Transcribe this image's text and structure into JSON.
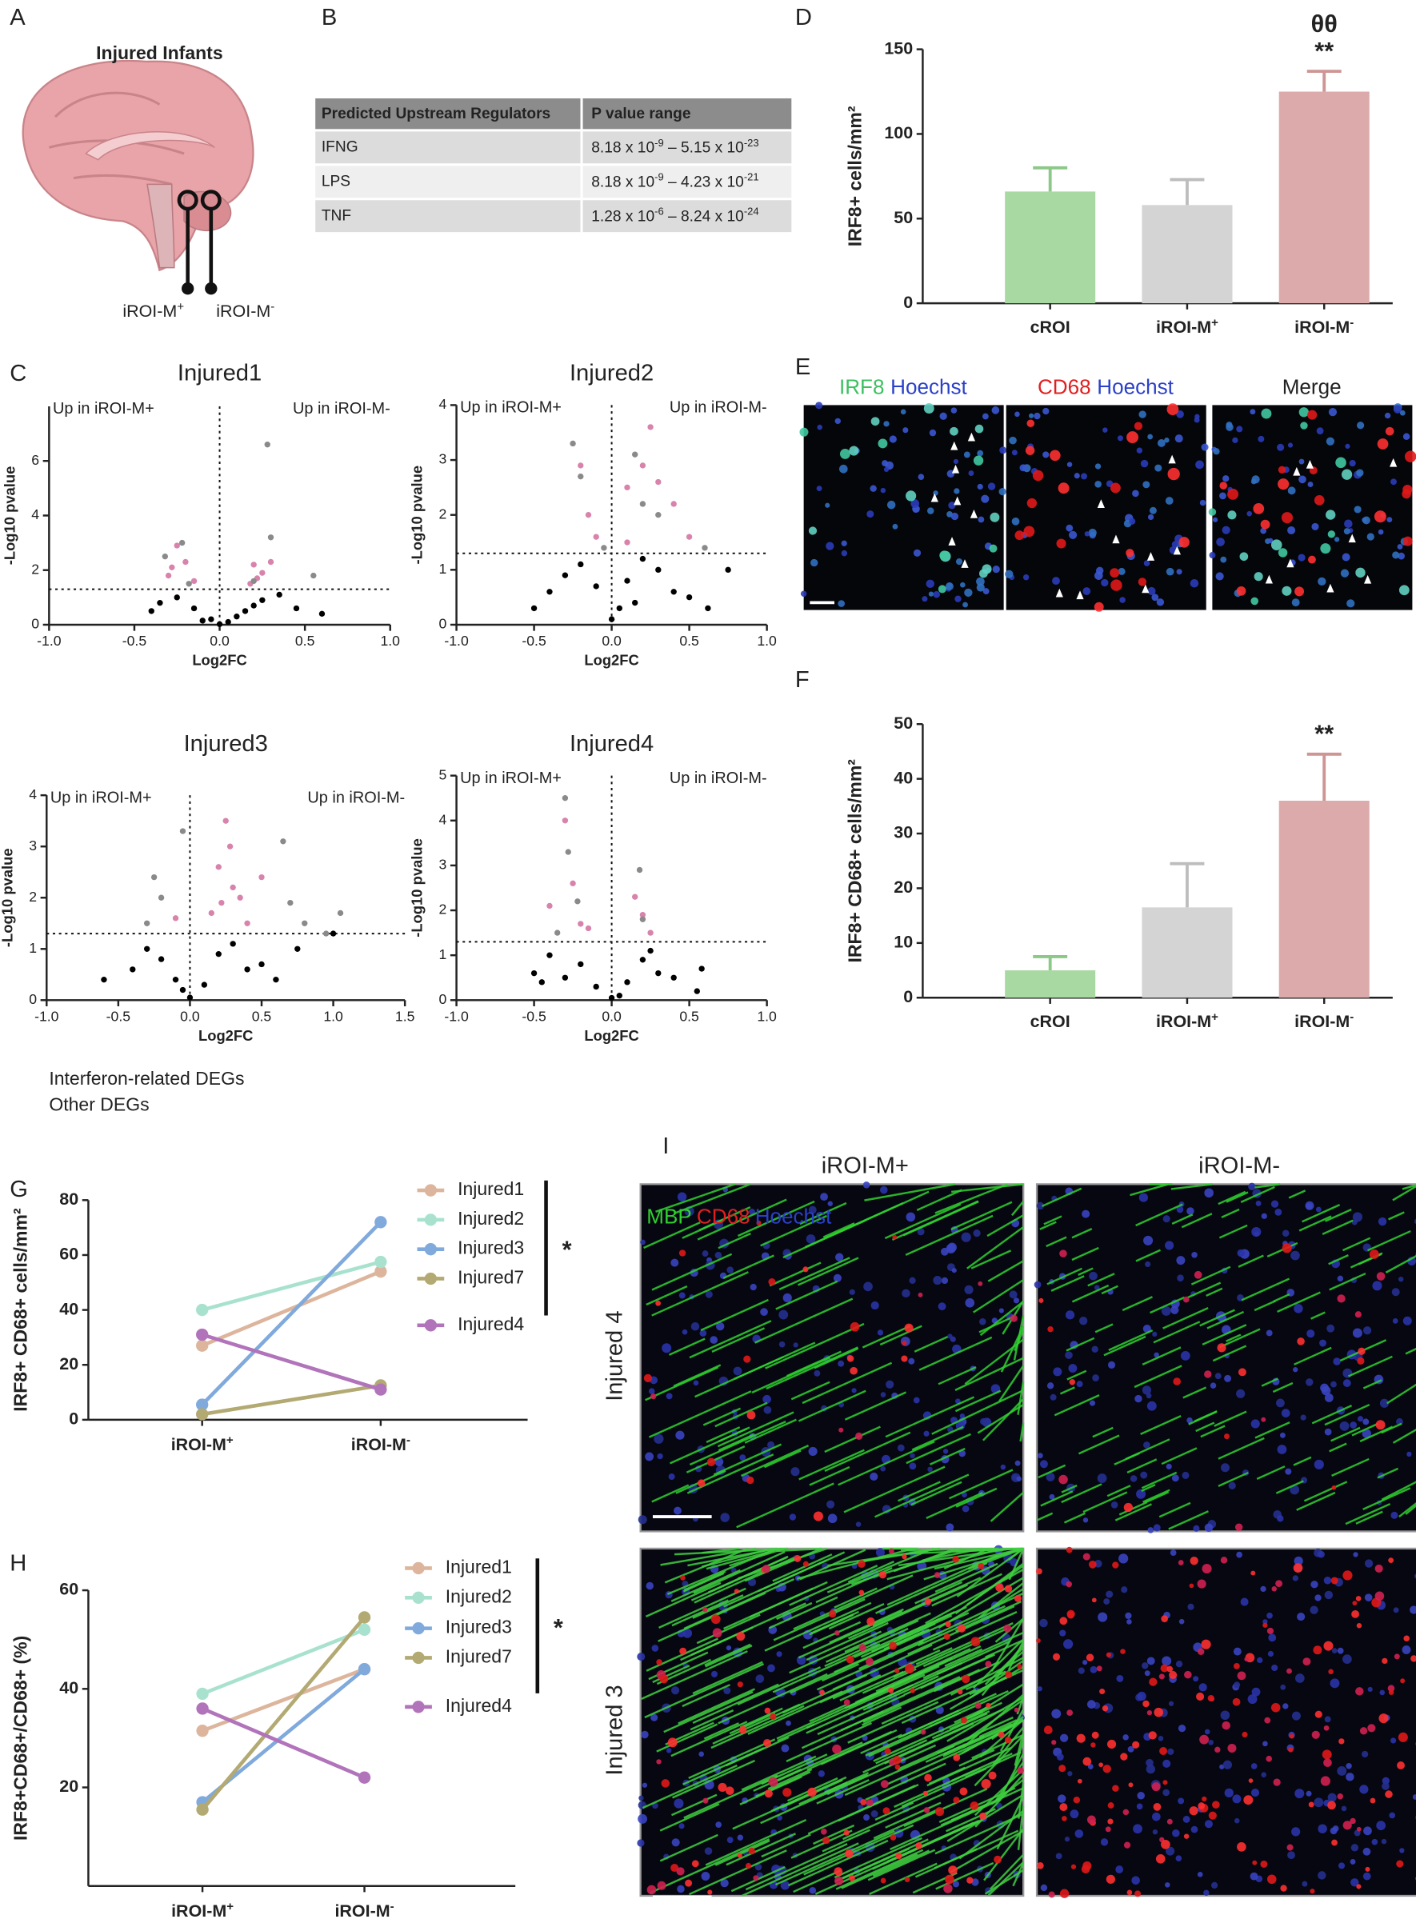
{
  "panel_labels": [
    "A",
    "B",
    "C",
    "D",
    "E",
    "F",
    "G",
    "H",
    "I"
  ],
  "panel_a": {
    "title": "Injured Infants",
    "labels": [
      "iROI-M+",
      "iROI-M-"
    ]
  },
  "table_b": {
    "header": [
      "Predicted Upstream Regulators",
      "P value range"
    ],
    "rows": [
      [
        "IFNG",
        [
          "8.18 x 10",
          "-9",
          " – 5.15 x 10",
          "-23"
        ]
      ],
      [
        "LPS",
        [
          "8.18 x 10",
          "-9",
          " – 4.23 x 10",
          "-21"
        ]
      ],
      [
        "TNF",
        [
          "1.28 x 10",
          "-6",
          " – 8.24 x 10",
          "-24"
        ]
      ]
    ]
  },
  "panel_e": {
    "headers": [
      [
        "IRF8",
        "Hoechst"
      ],
      [
        "CD68",
        "Hoechst"
      ],
      [
        "Merge"
      ]
    ]
  },
  "panel_i": {
    "column_titles": [
      "iROI-M+",
      "iROI-M-"
    ],
    "row_titles": [
      "Injured 4",
      "Injured 3"
    ],
    "stain_labels": [
      "MBP",
      "CD68",
      "Hoechst"
    ]
  },
  "chart_data": [
    {
      "type": "bar",
      "ylabel": "IRF8+ cells/mm²",
      "categories": [
        "cROI",
        "iROI-M+",
        "iROI-M-"
      ],
      "values": [
        66,
        58,
        125
      ],
      "errors": [
        14,
        15,
        12
      ],
      "colors": [
        "#a9d9a2",
        "#d4d4d4",
        "#dcaaaa"
      ],
      "error_colors": [
        "#8cc887",
        "#bdbdbd",
        "#cf9494"
      ],
      "ylim": [
        0,
        150
      ],
      "yticks": [
        0,
        50,
        100,
        150
      ],
      "annotations": [
        "θθ",
        "**"
      ]
    },
    {
      "type": "bar",
      "ylabel": "IRF8+ CD68+ cells/mm²",
      "categories": [
        "cROI",
        "iROI-M+",
        "iROI-M-"
      ],
      "values": [
        5,
        16.5,
        36
      ],
      "errors": [
        2.5,
        8,
        8.5
      ],
      "colors": [
        "#a9d9a2",
        "#d4d4d4",
        "#dcaaaa"
      ],
      "error_colors": [
        "#8cc887",
        "#bdbdbd",
        "#cf9494"
      ],
      "ylim": [
        0,
        50
      ],
      "yticks": [
        0,
        10,
        20,
        30,
        40,
        50
      ],
      "annotations": [
        "**"
      ]
    },
    {
      "type": "line",
      "ylabel": "IRF8+ CD68+ cells/mm²",
      "categories": [
        "iROI-M+",
        "iROI-M-"
      ],
      "ylim": [
        0,
        80
      ],
      "yticks": [
        0,
        20,
        40,
        60,
        80
      ],
      "annotations": [
        "*"
      ],
      "series": [
        {
          "name": "Injured1",
          "color": "#dcb59c",
          "values": [
            27,
            54
          ]
        },
        {
          "name": "Injured2",
          "color": "#a8e2cf",
          "values": [
            40,
            57.5
          ]
        },
        {
          "name": "Injured3",
          "color": "#80a9dc",
          "values": [
            5.5,
            72
          ]
        },
        {
          "name": "Injured7",
          "color": "#b3a972",
          "values": [
            2,
            12.5
          ]
        },
        {
          "name": "Injured4",
          "color": "#b173ba",
          "values": [
            31,
            11
          ]
        }
      ]
    },
    {
      "type": "line",
      "ylabel": "IRF8+CD68+/CD68+ (%)",
      "categories": [
        "iROI-M+",
        "iROI-M-"
      ],
      "ylim": [
        0,
        60
      ],
      "yticks": [
        20,
        40,
        60
      ],
      "annotations": [
        "*"
      ],
      "series": [
        {
          "name": "Injured1",
          "color": "#dcb59c",
          "values": [
            31.5,
            44
          ]
        },
        {
          "name": "Injured2",
          "color": "#a8e2cf",
          "values": [
            39,
            52
          ]
        },
        {
          "name": "Injured3",
          "color": "#80a9dc",
          "values": [
            17,
            44
          ]
        },
        {
          "name": "Injured7",
          "color": "#b3a972",
          "values": [
            15.5,
            54.5
          ]
        },
        {
          "name": "Injured4",
          "color": "#b173ba",
          "values": [
            36,
            22
          ]
        }
      ]
    },
    {
      "type": "scatter",
      "title": "Injured1",
      "xlabel": "Log2FC",
      "ylabel": "-Log10 pvalue",
      "annotations": [
        "Up in iROI-M+",
        "Up in iROI-M-"
      ],
      "xlim": [
        -1,
        1
      ],
      "xticks": [
        {
          "value": -1,
          "label": "-1.0"
        },
        -0.5,
        {
          "value": 0,
          "label": "0.0"
        },
        0.5,
        {
          "value": 1,
          "label": "1.0"
        }
      ],
      "ylim": [
        0,
        8
      ],
      "yticks": [
        0,
        2,
        4,
        6
      ],
      "threshold": 1.3,
      "series": [
        {
          "name": "Interferon-related DEGs",
          "color": "#d883ac",
          "x": [
            -0.25,
            -0.2,
            -0.3,
            -0.15,
            0.2,
            0.25,
            0.3,
            0.22,
            -0.28,
            0.18
          ],
          "values": [
            2.9,
            2.3,
            1.8,
            1.6,
            2.2,
            1.9,
            2.3,
            1.7,
            2.1,
            1.5
          ]
        },
        {
          "name": "Other DEGs",
          "color": "#8a8a8a",
          "x": [
            -0.32,
            -0.22,
            0.28,
            0.3,
            -0.18,
            0.2,
            0.55
          ],
          "values": [
            2.5,
            3.0,
            6.6,
            3.2,
            1.5,
            1.6,
            1.8
          ]
        }
      ],
      "background": {
        "color": "#000000",
        "x": [
          -0.35,
          -0.25,
          -0.15,
          -0.05,
          0.05,
          0.1,
          0.15,
          0.25,
          0.35,
          0.45,
          0.6,
          -0.4,
          -0.1,
          0.2,
          0.0
        ],
        "values": [
          0.8,
          1.0,
          0.6,
          0.2,
          0.1,
          0.3,
          0.5,
          0.9,
          1.1,
          0.6,
          0.4,
          0.5,
          0.15,
          0.7,
          0.02
        ]
      }
    },
    {
      "type": "scatter",
      "title": "Injured2",
      "xlabel": "Log2FC",
      "ylabel": "-Log10 pvalue",
      "annotations": [
        "Up in iROI-M+",
        "Up in iROI-M-"
      ],
      "xlim": [
        -1,
        1
      ],
      "xticks": [
        {
          "value": -1,
          "label": "-1.0"
        },
        -0.5,
        {
          "value": 0,
          "label": "0.0"
        },
        0.5,
        {
          "value": 1,
          "label": "1.0"
        }
      ],
      "ylim": [
        0,
        4
      ],
      "yticks": [
        0,
        1,
        2,
        3,
        4
      ],
      "threshold": 1.3,
      "series": [
        {
          "name": "Interferon-related DEGs",
          "color": "#d883ac",
          "x": [
            -0.2,
            -0.15,
            0.1,
            0.2,
            0.3,
            0.5,
            0.1,
            0.4,
            -0.1,
            0.25
          ],
          "values": [
            2.9,
            2.0,
            2.5,
            2.9,
            2.6,
            1.6,
            1.5,
            2.2,
            1.6,
            3.6
          ]
        },
        {
          "name": "Other DEGs",
          "color": "#8a8a8a",
          "x": [
            -0.25,
            -0.2,
            0.15,
            0.2,
            -0.05,
            0.3,
            0.6
          ],
          "values": [
            3.3,
            2.7,
            3.1,
            2.2,
            1.4,
            2.0,
            1.4
          ]
        }
      ],
      "background": {
        "color": "#000000",
        "x": [
          -0.4,
          -0.3,
          -0.2,
          -0.1,
          0.0,
          0.05,
          0.1,
          0.2,
          0.3,
          0.4,
          0.5,
          0.62,
          0.75,
          -0.5,
          0.15
        ],
        "values": [
          0.6,
          0.9,
          1.1,
          0.7,
          0.1,
          0.3,
          0.8,
          1.2,
          1.0,
          0.6,
          0.5,
          0.3,
          1.0,
          0.3,
          0.4
        ]
      }
    },
    {
      "type": "scatter",
      "title": "Injured3",
      "xlabel": "Log2FC",
      "ylabel": "-Log10 pvalue",
      "annotations": [
        "Up in iROI-M+",
        "Up in iROI-M-"
      ],
      "xlim": [
        -1,
        1.5
      ],
      "xticks": [
        {
          "value": -1,
          "label": "-1.0"
        },
        -0.5,
        {
          "value": 0,
          "label": "0.0"
        },
        0.5,
        {
          "value": 1,
          "label": "1.0"
        },
        1.5
      ],
      "ylim": [
        0,
        4
      ],
      "yticks": [
        0,
        1,
        2,
        3,
        4
      ],
      "threshold": 1.3,
      "series": [
        {
          "name": "Interferon-related DEGs",
          "color": "#d883ac",
          "x": [
            0.2,
            0.25,
            0.3,
            0.35,
            0.15,
            0.4,
            0.22,
            0.5,
            0.28,
            -0.1
          ],
          "values": [
            2.6,
            3.5,
            2.2,
            2.0,
            1.7,
            1.5,
            1.9,
            2.4,
            3.0,
            1.6
          ]
        },
        {
          "name": "Other DEGs",
          "color": "#8a8a8a",
          "x": [
            -0.05,
            -0.2,
            -0.3,
            0.7,
            0.65,
            1.05,
            0.95,
            0.8,
            -0.25
          ],
          "values": [
            3.3,
            2.0,
            1.5,
            1.9,
            3.1,
            1.7,
            1.3,
            1.5,
            2.4
          ]
        }
      ],
      "background": {
        "color": "#000000",
        "x": [
          -0.6,
          -0.4,
          -0.3,
          -0.2,
          -0.1,
          0.0,
          0.1,
          0.2,
          0.3,
          0.4,
          0.5,
          0.6,
          0.75,
          1.0,
          -0.05
        ],
        "values": [
          0.4,
          0.6,
          1.0,
          0.8,
          0.4,
          0.05,
          0.3,
          0.9,
          1.1,
          0.6,
          0.7,
          0.4,
          1.0,
          1.3,
          0.2
        ]
      }
    },
    {
      "type": "scatter",
      "title": "Injured4",
      "xlabel": "Log2FC",
      "ylabel": "-Log10 pvalue",
      "annotations": [
        "Up in iROI-M+",
        "Up in iROI-M-"
      ],
      "xlim": [
        -1,
        1
      ],
      "xticks": [
        {
          "value": -1,
          "label": "-1.0"
        },
        -0.5,
        {
          "value": 0,
          "label": "0.0"
        },
        0.5,
        {
          "value": 1,
          "label": "1.0"
        }
      ],
      "ylim": [
        0,
        5
      ],
      "yticks": [
        0,
        1,
        2,
        3,
        4,
        5
      ],
      "threshold": 1.3,
      "series": [
        {
          "name": "Interferon-related DEGs",
          "color": "#d883ac",
          "x": [
            -0.3,
            -0.25,
            -0.4,
            -0.2,
            0.15,
            0.2,
            0.25,
            -0.15
          ],
          "values": [
            4.0,
            2.6,
            2.1,
            1.7,
            2.3,
            1.9,
            1.5,
            1.6
          ]
        },
        {
          "name": "Other DEGs",
          "color": "#8a8a8a",
          "x": [
            -0.3,
            -0.28,
            -0.22,
            0.18,
            0.2,
            -0.35
          ],
          "values": [
            4.5,
            3.3,
            2.2,
            2.9,
            1.8,
            1.5
          ]
        }
      ],
      "background": {
        "color": "#000000",
        "x": [
          -0.5,
          -0.4,
          -0.3,
          -0.2,
          -0.1,
          0.0,
          0.1,
          0.2,
          0.3,
          0.4,
          0.55,
          0.58,
          -0.45,
          0.05,
          0.25
        ],
        "values": [
          0.6,
          1.0,
          0.5,
          0.8,
          0.3,
          0.05,
          0.4,
          0.9,
          0.6,
          0.5,
          0.2,
          0.7,
          0.4,
          0.1,
          1.1
        ]
      }
    }
  ]
}
